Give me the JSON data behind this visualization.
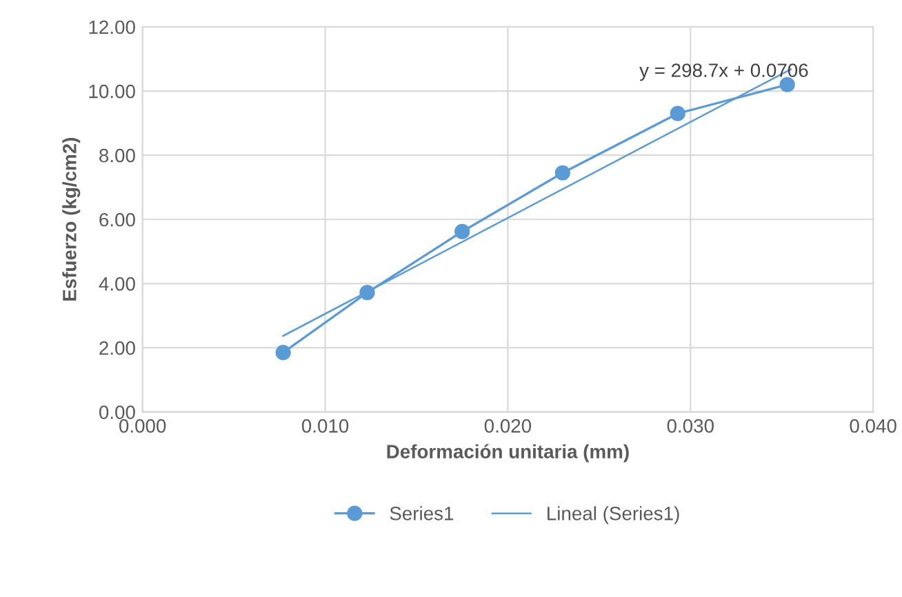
{
  "chart_data": {
    "type": "line",
    "xlabel": "Deformación unitaria (mm)",
    "ylabel": "Esfuerzo (kg/cm2)",
    "series": [
      {
        "name": "Series1",
        "color": "#5b9bd5",
        "marker": "circle",
        "x": [
          0.0077,
          0.0123,
          0.0175,
          0.023,
          0.0293,
          0.0353
        ],
        "values": [
          1.85,
          3.72,
          5.62,
          7.45,
          9.3,
          10.2
        ]
      },
      {
        "name": "Lineal (Series1)",
        "color": "#5b9bd5",
        "marker": "none",
        "x": [
          0.0077,
          0.0355
        ],
        "values": [
          2.37,
          10.68
        ]
      }
    ],
    "xlim": [
      0.0,
      0.04
    ],
    "xticks": [
      {
        "value": 0.0,
        "label": "0.000"
      },
      {
        "value": 0.01,
        "label": "0.010"
      },
      {
        "value": 0.02,
        "label": "0.020"
      },
      {
        "value": 0.03,
        "label": "0.030"
      },
      {
        "value": 0.04,
        "label": "0.040"
      }
    ],
    "ylim": [
      0,
      12
    ],
    "yticks": [
      {
        "value": 0,
        "label": "0.00"
      },
      {
        "value": 2,
        "label": "2.00"
      },
      {
        "value": 4,
        "label": "4.00"
      },
      {
        "value": 6,
        "label": "6.00"
      },
      {
        "value": 8,
        "label": "8.00"
      },
      {
        "value": 10,
        "label": "10.00"
      },
      {
        "value": 12,
        "label": "12.00"
      }
    ],
    "grid": true,
    "legend": "bottom",
    "annotations": [
      "y = 298.7x + 0.0706"
    ]
  }
}
